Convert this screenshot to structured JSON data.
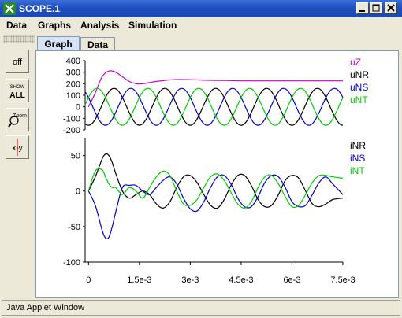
{
  "window": {
    "title": "SCOPE.1"
  },
  "menu": {
    "items": [
      "Data",
      "Graphs",
      "Analysis",
      "Simulation"
    ]
  },
  "tabs": [
    {
      "label": "Graph",
      "active": true
    },
    {
      "label": "Data",
      "active": false
    }
  ],
  "toolbar": {
    "off_label": "off",
    "show_all_top": "SHOW",
    "show_all_bottom": "ALL",
    "zoom_label": "Zoom",
    "xy_label": "x-y"
  },
  "status": {
    "text": "Java Applet Window"
  },
  "colors": {
    "uZ": "#cc00cc",
    "uNR": "#000000",
    "uNS": "#0000cc",
    "uNT": "#00cc00",
    "iNR": "#000000",
    "iNS": "#0000cc",
    "iNT": "#00cc00"
  },
  "chart_data": [
    {
      "type": "line",
      "title": "",
      "ylim": [
        -200,
        400
      ],
      "yticks": [
        "400",
        "300",
        "200",
        "100",
        "0",
        "-100",
        "-200"
      ],
      "ytick_values": [
        400,
        300,
        200,
        100,
        0,
        -100,
        -200
      ],
      "xlim": [
        -0.0001,
        0.0075
      ],
      "legend": [
        "uZ",
        "uNR",
        "uNS",
        "uNT"
      ],
      "series": [
        {
          "name": "uZ",
          "color": "#cc00cc",
          "x": [
            0,
            0.0002,
            0.0004,
            0.0006,
            0.0008,
            0.001,
            0.0012,
            0.0014,
            0.0016,
            0.0018,
            0.002,
            0.0025,
            0.003,
            0.0035,
            0.004,
            0.0045,
            0.005,
            0.0055,
            0.006,
            0.0065,
            0.007,
            0.0075
          ],
          "y": [
            0,
            120,
            260,
            310,
            300,
            260,
            220,
            200,
            200,
            210,
            220,
            235,
            235,
            230,
            228,
            225,
            225,
            225,
            225,
            225,
            225,
            225
          ]
        },
        {
          "name": "uNR",
          "color": "#000000",
          "amp": 160,
          "freq": 666.67,
          "phase": -1.5708
        },
        {
          "name": "uNS",
          "color": "#0000cc",
          "amp": 160,
          "freq": 666.67,
          "phase": -3.6652
        },
        {
          "name": "uNT",
          "color": "#00cc00",
          "amp": 160,
          "freq": 666.67,
          "phase": 0.5236
        }
      ]
    },
    {
      "type": "line",
      "title": "",
      "ylim": [
        -100,
        75
      ],
      "yticks": [
        "50",
        "0",
        "-50",
        "-100"
      ],
      "ytick_values": [
        50,
        0,
        -50,
        -100
      ],
      "xlim": [
        -0.0001,
        0.0075
      ],
      "xticks": [
        "0",
        "1.5e-3",
        "3e-3",
        "4.5e-3",
        "6e-3",
        "7.5e-3"
      ],
      "xtick_values": [
        0,
        0.0015,
        0.003,
        0.0045,
        0.006,
        0.0075
      ],
      "legend": [
        "iNR",
        "iNS",
        "iNT"
      ],
      "series": [
        {
          "name": "iNR",
          "color": "#000000",
          "x": [
            0,
            0.0002,
            0.0004,
            0.0005,
            0.0006,
            0.0007,
            0.0008,
            0.001,
            0.0012,
            0.0014,
            0.0016,
            0.0018,
            0.002,
            0.0022,
            0.0024,
            0.0026,
            0.0028,
            0.003,
            0.0032,
            0.0034,
            0.0036,
            0.0038,
            0.004,
            0.0042,
            0.0044,
            0.0046,
            0.0048,
            0.005,
            0.0052,
            0.0054,
            0.0056,
            0.0058,
            0.006,
            0.0062,
            0.0064,
            0.0066,
            0.0068,
            0.007,
            0.0072,
            0.0075
          ],
          "y": [
            0,
            20,
            45,
            52,
            50,
            40,
            25,
            0,
            -10,
            -5,
            0,
            -5,
            -18,
            -24,
            -15,
            5,
            20,
            22,
            12,
            -5,
            -20,
            -24,
            -12,
            8,
            22,
            22,
            8,
            -12,
            -22,
            -20,
            -5,
            15,
            22,
            18,
            0,
            -18,
            -22,
            -18,
            -12,
            -10
          ]
        },
        {
          "name": "iNS",
          "color": "#0000cc",
          "x": [
            0,
            0.0002,
            0.0004,
            0.0005,
            0.0006,
            0.0007,
            0.0008,
            0.001,
            0.0012,
            0.0014,
            0.0016,
            0.0018,
            0.002,
            0.0022,
            0.0024,
            0.0026,
            0.0028,
            0.003,
            0.0032,
            0.0034,
            0.0036,
            0.0038,
            0.004,
            0.0042,
            0.0044,
            0.0046,
            0.0048,
            0.005,
            0.0052,
            0.0054,
            0.0056,
            0.0058,
            0.006,
            0.0062,
            0.0064,
            0.0066,
            0.0068,
            0.007,
            0.0072,
            0.0075
          ],
          "y": [
            0,
            -20,
            -55,
            -66,
            -65,
            -50,
            -30,
            5,
            8,
            8,
            0,
            -5,
            5,
            15,
            20,
            10,
            -10,
            -25,
            -28,
            -15,
            5,
            20,
            22,
            10,
            -10,
            -22,
            -22,
            -8,
            12,
            22,
            20,
            5,
            -15,
            -22,
            -20,
            -5,
            12,
            20,
            10,
            -5
          ]
        },
        {
          "name": "iNT",
          "color": "#00cc00",
          "x": [
            0,
            0.0002,
            0.0004,
            0.0005,
            0.0006,
            0.0007,
            0.0008,
            0.001,
            0.0012,
            0.0014,
            0.0016,
            0.0018,
            0.002,
            0.0022,
            0.0024,
            0.0026,
            0.0028,
            0.003,
            0.0032,
            0.0034,
            0.0036,
            0.0038,
            0.004,
            0.0042,
            0.0044,
            0.0046,
            0.0048,
            0.005,
            0.0052,
            0.0054,
            0.0056,
            0.0058,
            0.006,
            0.0062,
            0.0064,
            0.0066,
            0.0068,
            0.007,
            0.0072,
            0.0075
          ],
          "y": [
            0,
            28,
            30,
            20,
            10,
            5,
            5,
            -5,
            5,
            0,
            -10,
            5,
            20,
            28,
            22,
            0,
            -18,
            -20,
            -12,
            5,
            20,
            24,
            15,
            -2,
            -18,
            -24,
            -15,
            5,
            20,
            22,
            10,
            -8,
            -22,
            -20,
            -5,
            12,
            22,
            22,
            20,
            18
          ]
        }
      ]
    }
  ]
}
